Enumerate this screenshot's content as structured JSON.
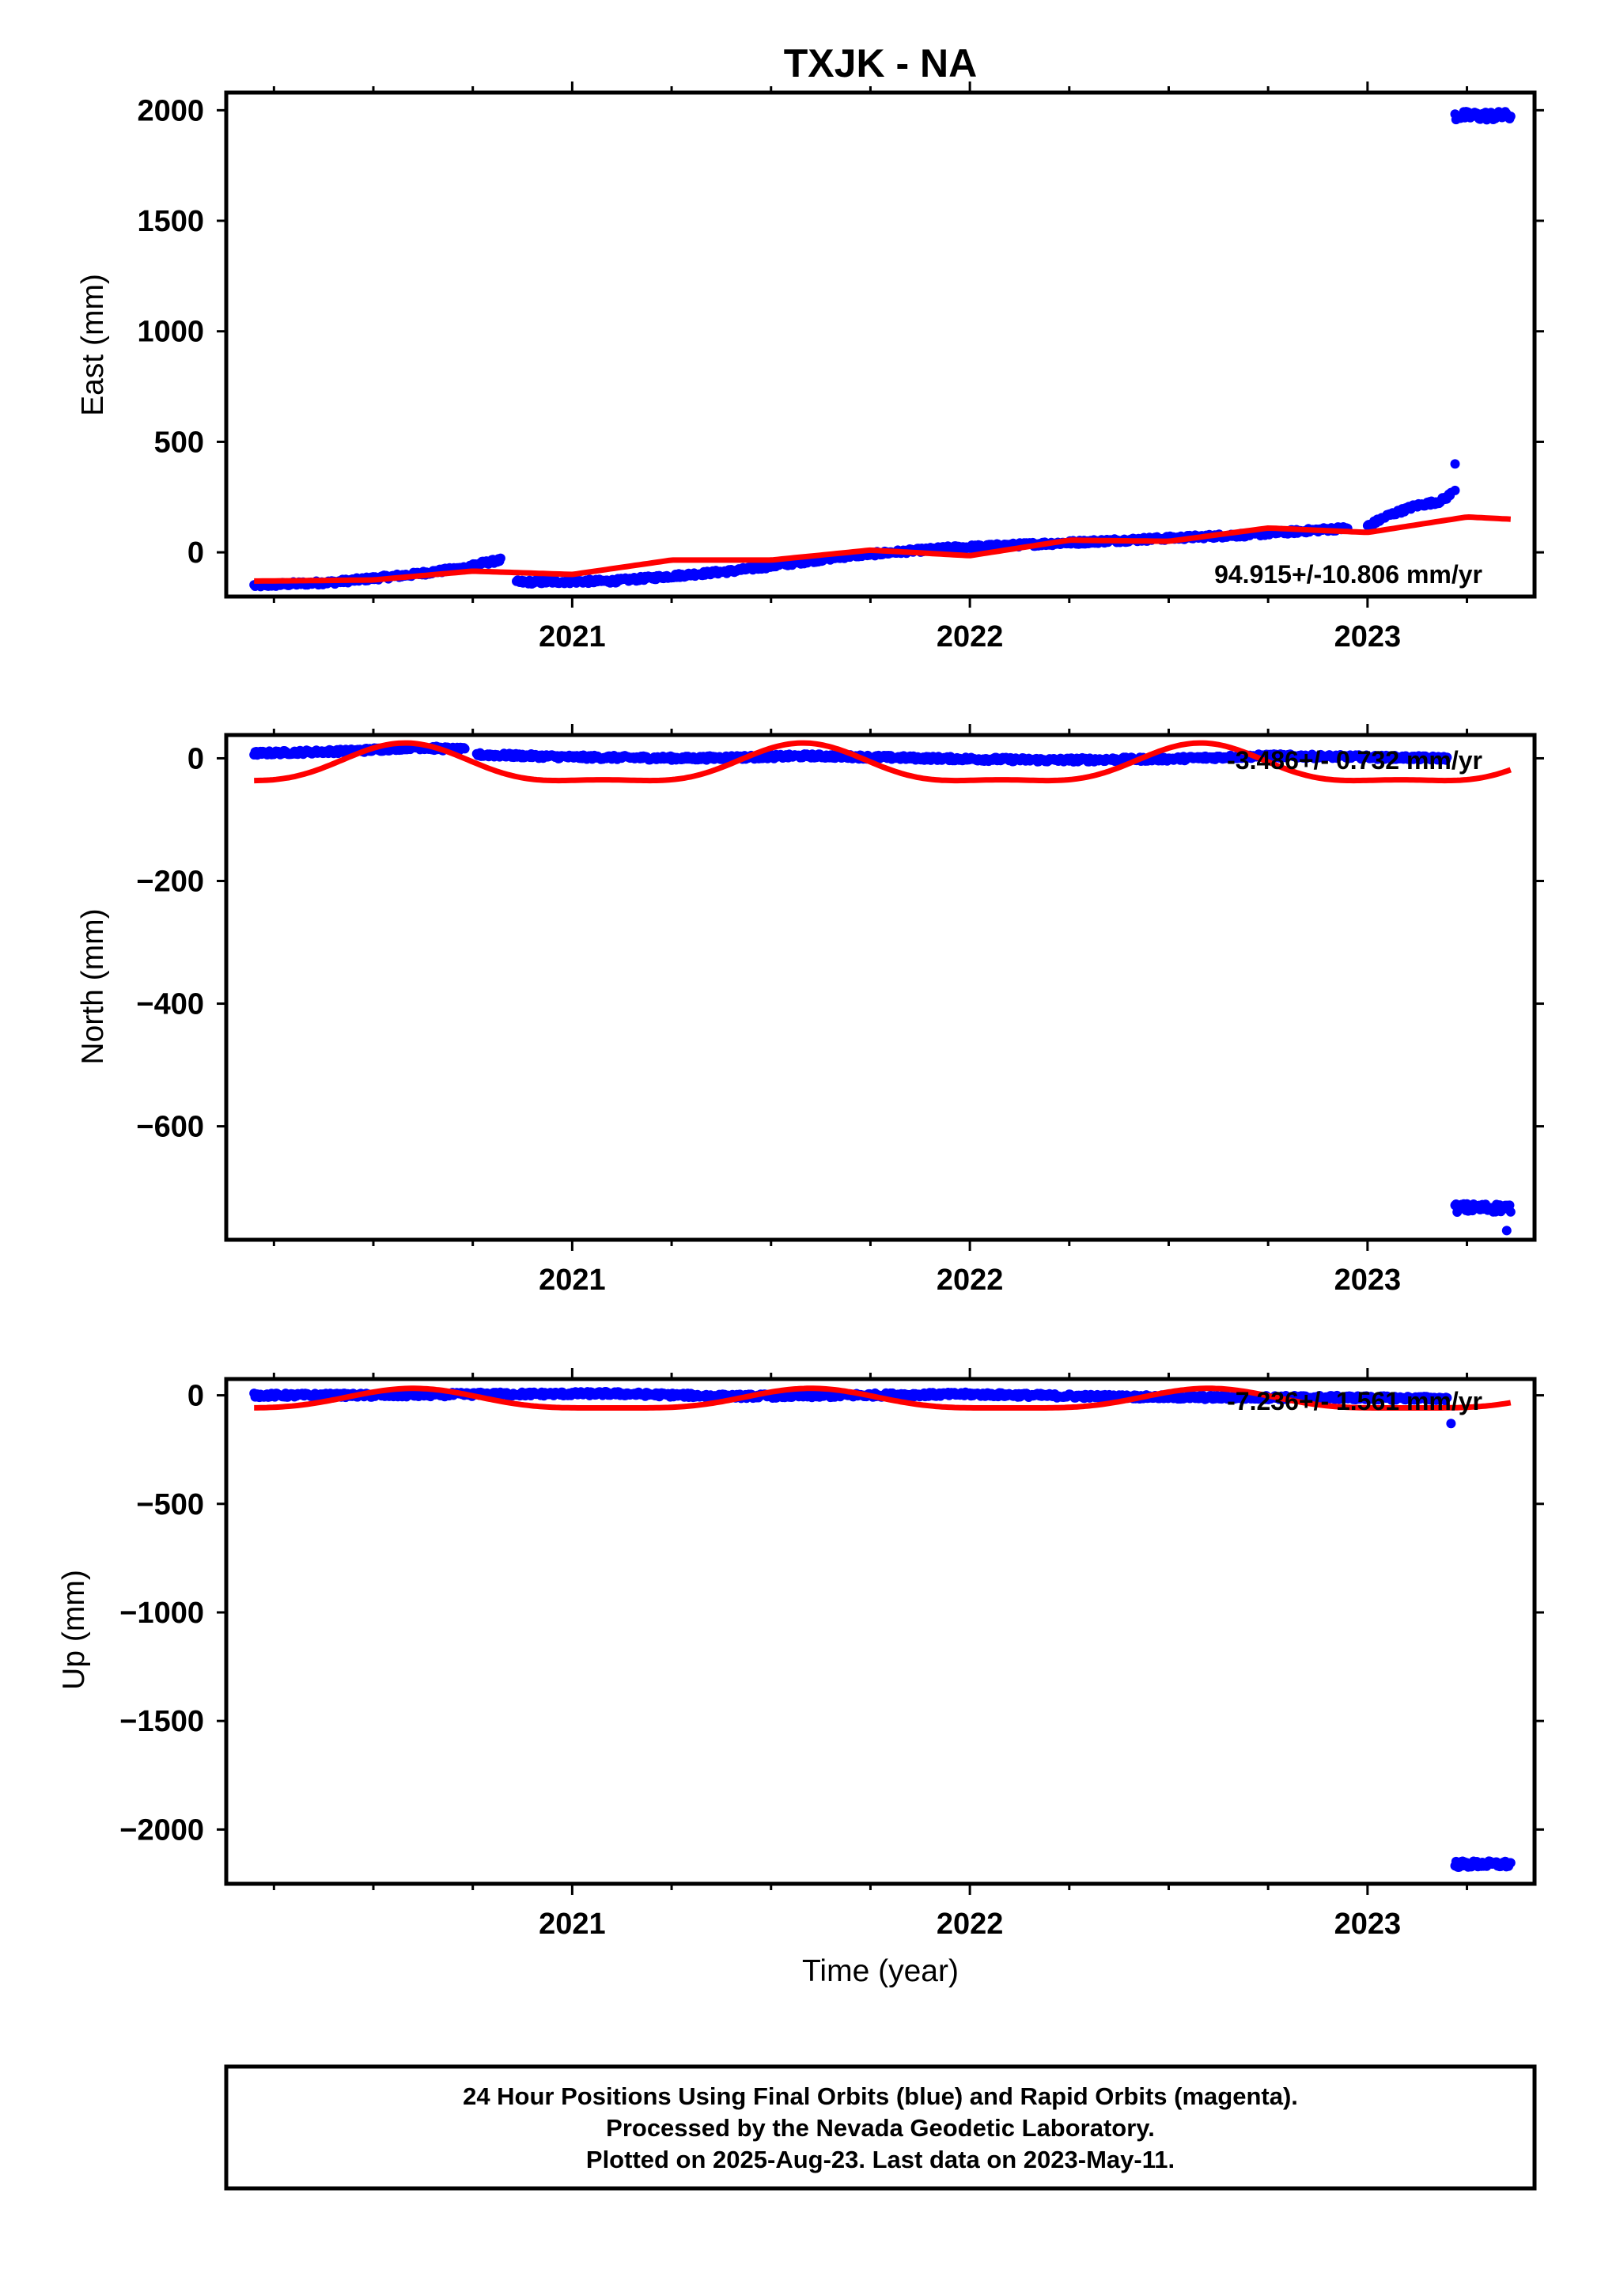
{
  "title": "TXJK - NA",
  "colors": {
    "final_orbits": "#0000ff",
    "model_fit": "#ff0000",
    "frame": "#000000"
  },
  "x_axis": {
    "label": "Time (year)",
    "range": [
      2020.13,
      2023.42
    ],
    "major_ticks": [
      2021,
      2022,
      2023
    ],
    "major_tick_labels": [
      "2021",
      "2022",
      "2023"
    ],
    "minor_ticks": [
      2020.25,
      2020.5,
      2020.75,
      2021.25,
      2021.5,
      2021.75,
      2022.25,
      2022.5,
      2022.75,
      2023.25
    ]
  },
  "chart_data": [
    {
      "type": "scatter",
      "component": "east",
      "ylabel": "East (mm)",
      "ylim": [
        -200,
        2080
      ],
      "yticks": [
        0,
        500,
        1000,
        1500,
        2000
      ],
      "ytick_labels": [
        "0",
        "500",
        "1000",
        "1500",
        "2000"
      ],
      "rate_label": "94.915+/-10.806 mm/yr",
      "rate_position": "bottom-right",
      "series": [
        {
          "kind": "points",
          "segments": [
            {
              "x": [
                2020.2,
                2020.4,
                2020.6,
                2020.73
              ],
              "y": [
                -150,
                -135,
                -100,
                -70
              ]
            },
            {
              "x": [
                2020.74,
                2020.82
              ],
              "y": [
                -60,
                -35
              ]
            },
            {
              "x": [
                2020.86,
                2021.1,
                2021.4,
                2021.7,
                2021.95,
                2022.2,
                2022.45,
                2022.7,
                2022.95
              ],
              "y": [
                -135,
                -130,
                -85,
                -15,
                20,
                40,
                60,
                80,
                110
              ]
            },
            {
              "x": [
                2023.0,
                2023.05,
                2023.12,
                2023.18,
                2023.2,
                2023.21
              ],
              "y": [
                118,
                165,
                210,
                230,
                250,
                265
              ]
            }
          ],
          "outliers": [
            {
              "x": 2023.22,
              "y": 400
            },
            {
              "x": 2023.22,
              "y": 280
            }
          ],
          "cluster": {
            "x_range": [
              2023.22,
              2023.36
            ],
            "y_center": 1975,
            "y_spread": 40
          }
        },
        {
          "kind": "model",
          "x": [
            2020.2,
            2020.5,
            2020.75,
            2021.0,
            2021.25,
            2021.5,
            2021.75,
            2022.0,
            2022.25,
            2022.5,
            2022.75,
            2023.0,
            2023.25,
            2023.36
          ],
          "y": [
            -130,
            -125,
            -85,
            -100,
            -35,
            -35,
            10,
            -15,
            55,
            50,
            110,
            90,
            160,
            150
          ]
        }
      ]
    },
    {
      "type": "scatter",
      "component": "north",
      "ylabel": "North (mm)",
      "ylim": [
        -785,
        38
      ],
      "yticks": [
        0,
        -200,
        -400,
        -600
      ],
      "ytick_labels": [
        "0",
        "−200",
        "−400",
        "−600"
      ],
      "rate_label": "-3.486+/- 0.732 mm/yr",
      "rate_position": "top-right",
      "series": [
        {
          "kind": "points",
          "segments": [
            {
              "x": [
                2020.2,
                2020.45,
                2020.6,
                2020.73
              ],
              "y": [
                8,
                12,
                18,
                14
              ]
            },
            {
              "x": [
                2020.76,
                2021.0,
                2021.3,
                2021.6,
                2021.9,
                2022.2,
                2022.5,
                2022.75,
                2023.0,
                2023.2
              ],
              "y": [
                6,
                2,
                0,
                4,
                0,
                -3,
                -1,
                4,
                2,
                0
              ]
            }
          ],
          "outliers": [
            {
              "x": 2023.35,
              "y": -770
            }
          ],
          "cluster": {
            "x_range": [
              2023.22,
              2023.36
            ],
            "y_center": -733,
            "y_spread": 14
          }
        },
        {
          "kind": "model",
          "annual_phase": 0.58,
          "semiannual_phase": 0.08,
          "annual_amp": 30,
          "semiannual_amp": 10,
          "offset": -15,
          "x_range": [
            2020.2,
            2023.36
          ]
        }
      ]
    },
    {
      "type": "scatter",
      "component": "up",
      "ylabel": "Up (mm)",
      "ylim": [
        -2250,
        75
      ],
      "yticks": [
        0,
        -500,
        -1000,
        -1500,
        -2000
      ],
      "ytick_labels": [
        "0",
        "−500",
        "−1000",
        "−1500",
        "−2000"
      ],
      "rate_label": "-7.236+/- 1.561 mm/yr",
      "rate_position": "top-right",
      "series": [
        {
          "kind": "points",
          "segments": [
            {
              "x": [
                2020.2,
                2020.5,
                2020.8,
                2021.1,
                2021.4,
                2021.7,
                2022.0,
                2022.3,
                2022.6,
                2022.9,
                2023.2
              ],
              "y": [
                0,
                0,
                5,
                8,
                -5,
                0,
                5,
                -5,
                -10,
                -10,
                -15
              ]
            }
          ],
          "outliers": [
            {
              "x": 2023.21,
              "y": -130
            }
          ],
          "cluster": {
            "x_range": [
              2023.22,
              2023.36
            ],
            "y_center": -2160,
            "y_spread": 30
          }
        },
        {
          "kind": "model",
          "annual_phase": 0.6,
          "semiannual_phase": 0.1,
          "annual_amp": 45,
          "semiannual_amp": 12,
          "offset": -25,
          "x_range": [
            2020.2,
            2023.36
          ]
        }
      ]
    }
  ],
  "footer": {
    "line1": "24 Hour Positions Using Final Orbits (blue) and Rapid Orbits (magenta).",
    "line2": "Processed by the Nevada Geodetic Laboratory.",
    "line3": "Plotted on 2025-Aug-23. Last data on 2023-May-11."
  }
}
